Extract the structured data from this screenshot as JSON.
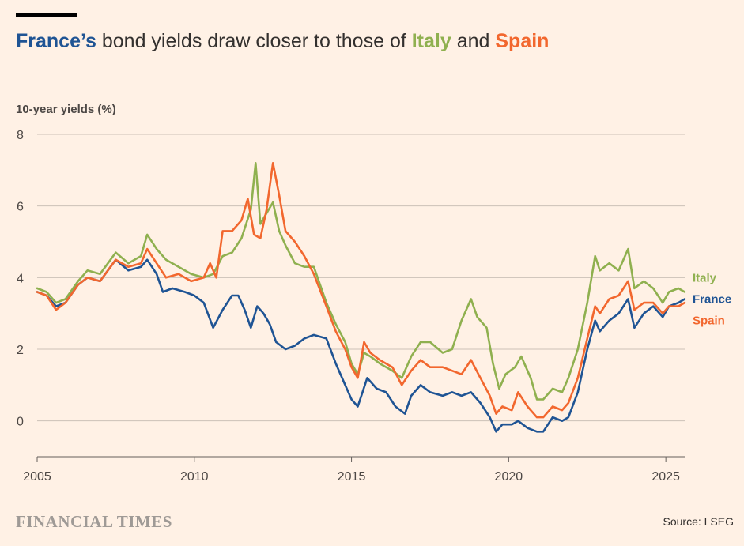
{
  "header": {
    "title_france": "France’s",
    "title_mid1": " bond yields draw closer to those of ",
    "title_italy": "Italy",
    "title_mid2": " and ",
    "title_spain": "Spain"
  },
  "footer": {
    "logo": "FINANCIAL TIMES",
    "source": "Source: LSEG"
  },
  "colors": {
    "france": "#1f5494",
    "italy": "#8fb04f",
    "spain": "#f2672e",
    "background": "#fff1e5",
    "grid": "#ccc1b7"
  },
  "chart_data": {
    "type": "line",
    "title": "France’s bond yields draw closer to those of Italy and Spain",
    "ylabel": "10-year yields (%)",
    "xlabel": "",
    "xlim": [
      2005,
      2025.6
    ],
    "ylim": [
      -1,
      8
    ],
    "yticks": [
      0,
      2,
      4,
      6,
      8
    ],
    "xticks": [
      2005,
      2010,
      2015,
      2020,
      2025
    ],
    "legend": "right end of lines",
    "series": [
      {
        "name": "Italy",
        "color": "#8fb04f",
        "points": [
          [
            2005,
            3.7
          ],
          [
            2005.3,
            3.6
          ],
          [
            2005.6,
            3.3
          ],
          [
            2005.9,
            3.4
          ],
          [
            2006.3,
            3.9
          ],
          [
            2006.6,
            4.2
          ],
          [
            2007,
            4.1
          ],
          [
            2007.5,
            4.7
          ],
          [
            2007.9,
            4.4
          ],
          [
            2008.3,
            4.6
          ],
          [
            2008.5,
            5.2
          ],
          [
            2008.8,
            4.8
          ],
          [
            2009.1,
            4.5
          ],
          [
            2009.5,
            4.3
          ],
          [
            2009.9,
            4.1
          ],
          [
            2010.3,
            4.0
          ],
          [
            2010.6,
            4.1
          ],
          [
            2010.9,
            4.6
          ],
          [
            2011.2,
            4.7
          ],
          [
            2011.5,
            5.1
          ],
          [
            2011.8,
            5.9
          ],
          [
            2011.95,
            7.2
          ],
          [
            2012.1,
            5.5
          ],
          [
            2012.3,
            5.8
          ],
          [
            2012.5,
            6.1
          ],
          [
            2012.7,
            5.3
          ],
          [
            2012.9,
            4.9
          ],
          [
            2013.2,
            4.4
          ],
          [
            2013.5,
            4.3
          ],
          [
            2013.8,
            4.3
          ],
          [
            2014.2,
            3.3
          ],
          [
            2014.5,
            2.7
          ],
          [
            2014.8,
            2.2
          ],
          [
            2015.0,
            1.6
          ],
          [
            2015.2,
            1.3
          ],
          [
            2015.4,
            1.9
          ],
          [
            2015.6,
            1.8
          ],
          [
            2015.9,
            1.6
          ],
          [
            2016.3,
            1.4
          ],
          [
            2016.6,
            1.2
          ],
          [
            2016.9,
            1.8
          ],
          [
            2017.2,
            2.2
          ],
          [
            2017.5,
            2.2
          ],
          [
            2017.9,
            1.9
          ],
          [
            2018.2,
            2.0
          ],
          [
            2018.5,
            2.8
          ],
          [
            2018.8,
            3.4
          ],
          [
            2019.0,
            2.9
          ],
          [
            2019.3,
            2.6
          ],
          [
            2019.5,
            1.6
          ],
          [
            2019.7,
            0.9
          ],
          [
            2019.9,
            1.3
          ],
          [
            2020.2,
            1.5
          ],
          [
            2020.4,
            1.8
          ],
          [
            2020.7,
            1.2
          ],
          [
            2020.9,
            0.6
          ],
          [
            2021.1,
            0.6
          ],
          [
            2021.4,
            0.9
          ],
          [
            2021.7,
            0.8
          ],
          [
            2021.9,
            1.2
          ],
          [
            2022.2,
            2.0
          ],
          [
            2022.5,
            3.3
          ],
          [
            2022.75,
            4.6
          ],
          [
            2022.9,
            4.2
          ],
          [
            2023.2,
            4.4
          ],
          [
            2023.5,
            4.2
          ],
          [
            2023.8,
            4.8
          ],
          [
            2024.0,
            3.7
          ],
          [
            2024.3,
            3.9
          ],
          [
            2024.6,
            3.7
          ],
          [
            2024.9,
            3.3
          ],
          [
            2025.1,
            3.6
          ],
          [
            2025.4,
            3.7
          ],
          [
            2025.6,
            3.6
          ]
        ]
      },
      {
        "name": "France",
        "color": "#1f5494",
        "points": [
          [
            2005,
            3.6
          ],
          [
            2005.3,
            3.5
          ],
          [
            2005.6,
            3.2
          ],
          [
            2005.9,
            3.3
          ],
          [
            2006.3,
            3.8
          ],
          [
            2006.6,
            4.0
          ],
          [
            2007,
            3.9
          ],
          [
            2007.5,
            4.5
          ],
          [
            2007.9,
            4.2
          ],
          [
            2008.3,
            4.3
          ],
          [
            2008.5,
            4.5
          ],
          [
            2008.8,
            4.1
          ],
          [
            2009.0,
            3.6
          ],
          [
            2009.3,
            3.7
          ],
          [
            2009.7,
            3.6
          ],
          [
            2010.0,
            3.5
          ],
          [
            2010.3,
            3.3
          ],
          [
            2010.6,
            2.6
          ],
          [
            2010.9,
            3.1
          ],
          [
            2011.2,
            3.5
          ],
          [
            2011.4,
            3.5
          ],
          [
            2011.6,
            3.1
          ],
          [
            2011.8,
            2.6
          ],
          [
            2012.0,
            3.2
          ],
          [
            2012.2,
            3.0
          ],
          [
            2012.4,
            2.7
          ],
          [
            2012.6,
            2.2
          ],
          [
            2012.9,
            2.0
          ],
          [
            2013.2,
            2.1
          ],
          [
            2013.5,
            2.3
          ],
          [
            2013.8,
            2.4
          ],
          [
            2014.2,
            2.3
          ],
          [
            2014.5,
            1.6
          ],
          [
            2014.8,
            1.0
          ],
          [
            2015.0,
            0.6
          ],
          [
            2015.2,
            0.4
          ],
          [
            2015.5,
            1.2
          ],
          [
            2015.8,
            0.9
          ],
          [
            2016.1,
            0.8
          ],
          [
            2016.4,
            0.4
          ],
          [
            2016.7,
            0.2
          ],
          [
            2016.9,
            0.7
          ],
          [
            2017.2,
            1.0
          ],
          [
            2017.5,
            0.8
          ],
          [
            2017.9,
            0.7
          ],
          [
            2018.2,
            0.8
          ],
          [
            2018.5,
            0.7
          ],
          [
            2018.8,
            0.8
          ],
          [
            2019.1,
            0.5
          ],
          [
            2019.4,
            0.1
          ],
          [
            2019.6,
            -0.3
          ],
          [
            2019.8,
            -0.1
          ],
          [
            2020.1,
            -0.1
          ],
          [
            2020.3,
            0.0
          ],
          [
            2020.6,
            -0.2
          ],
          [
            2020.9,
            -0.3
          ],
          [
            2021.1,
            -0.3
          ],
          [
            2021.4,
            0.1
          ],
          [
            2021.7,
            0.0
          ],
          [
            2021.9,
            0.1
          ],
          [
            2022.2,
            0.8
          ],
          [
            2022.5,
            2.0
          ],
          [
            2022.75,
            2.8
          ],
          [
            2022.9,
            2.5
          ],
          [
            2023.2,
            2.8
          ],
          [
            2023.5,
            3.0
          ],
          [
            2023.8,
            3.4
          ],
          [
            2024.0,
            2.6
          ],
          [
            2024.3,
            3.0
          ],
          [
            2024.6,
            3.2
          ],
          [
            2024.9,
            2.9
          ],
          [
            2025.1,
            3.2
          ],
          [
            2025.4,
            3.3
          ],
          [
            2025.6,
            3.4
          ]
        ]
      },
      {
        "name": "Spain",
        "color": "#f2672e",
        "points": [
          [
            2005,
            3.6
          ],
          [
            2005.3,
            3.5
          ],
          [
            2005.6,
            3.1
          ],
          [
            2005.9,
            3.3
          ],
          [
            2006.3,
            3.8
          ],
          [
            2006.6,
            4.0
          ],
          [
            2007,
            3.9
          ],
          [
            2007.5,
            4.5
          ],
          [
            2007.9,
            4.3
          ],
          [
            2008.3,
            4.4
          ],
          [
            2008.5,
            4.8
          ],
          [
            2008.8,
            4.4
          ],
          [
            2009.1,
            4.0
          ],
          [
            2009.5,
            4.1
          ],
          [
            2009.9,
            3.9
          ],
          [
            2010.3,
            4.0
          ],
          [
            2010.5,
            4.4
          ],
          [
            2010.7,
            4.0
          ],
          [
            2010.9,
            5.3
          ],
          [
            2011.2,
            5.3
          ],
          [
            2011.5,
            5.6
          ],
          [
            2011.7,
            6.2
          ],
          [
            2011.9,
            5.2
          ],
          [
            2012.1,
            5.1
          ],
          [
            2012.3,
            5.9
          ],
          [
            2012.5,
            7.2
          ],
          [
            2012.7,
            6.3
          ],
          [
            2012.9,
            5.3
          ],
          [
            2013.2,
            5.0
          ],
          [
            2013.5,
            4.6
          ],
          [
            2013.8,
            4.1
          ],
          [
            2014.2,
            3.2
          ],
          [
            2014.5,
            2.5
          ],
          [
            2014.8,
            2.0
          ],
          [
            2015.0,
            1.5
          ],
          [
            2015.2,
            1.2
          ],
          [
            2015.4,
            2.2
          ],
          [
            2015.6,
            1.9
          ],
          [
            2015.9,
            1.7
          ],
          [
            2016.3,
            1.5
          ],
          [
            2016.6,
            1.0
          ],
          [
            2016.9,
            1.4
          ],
          [
            2017.2,
            1.7
          ],
          [
            2017.5,
            1.5
          ],
          [
            2017.9,
            1.5
          ],
          [
            2018.2,
            1.4
          ],
          [
            2018.5,
            1.3
          ],
          [
            2018.8,
            1.7
          ],
          [
            2019.1,
            1.2
          ],
          [
            2019.4,
            0.7
          ],
          [
            2019.6,
            0.2
          ],
          [
            2019.8,
            0.4
          ],
          [
            2020.1,
            0.3
          ],
          [
            2020.3,
            0.8
          ],
          [
            2020.6,
            0.4
          ],
          [
            2020.9,
            0.1
          ],
          [
            2021.1,
            0.1
          ],
          [
            2021.4,
            0.4
          ],
          [
            2021.7,
            0.3
          ],
          [
            2021.9,
            0.5
          ],
          [
            2022.2,
            1.2
          ],
          [
            2022.5,
            2.3
          ],
          [
            2022.75,
            3.2
          ],
          [
            2022.9,
            3.0
          ],
          [
            2023.2,
            3.4
          ],
          [
            2023.5,
            3.5
          ],
          [
            2023.8,
            3.9
          ],
          [
            2024.0,
            3.1
          ],
          [
            2024.3,
            3.3
          ],
          [
            2024.6,
            3.3
          ],
          [
            2024.9,
            3.0
          ],
          [
            2025.1,
            3.2
          ],
          [
            2025.4,
            3.2
          ],
          [
            2025.6,
            3.3
          ]
        ]
      }
    ],
    "labels": [
      {
        "series": "Italy",
        "text": "Italy",
        "y": 4.0
      },
      {
        "series": "France",
        "text": "France",
        "y": 3.4
      },
      {
        "series": "Spain",
        "text": "Spain",
        "y": 2.8
      }
    ]
  }
}
